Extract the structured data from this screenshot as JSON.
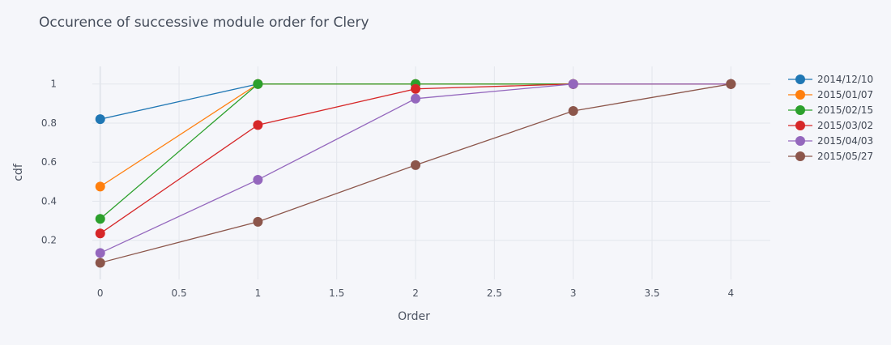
{
  "chart_data": {
    "type": "line",
    "title": "Occurence of successive module order for Clery",
    "xlabel": "Order",
    "ylabel": "cdf",
    "xlim": [
      -0.05,
      4.25
    ],
    "ylim": [
      0.0,
      1.09
    ],
    "x_ticks": [
      0,
      0.5,
      1,
      1.5,
      2,
      2.5,
      3,
      3.5,
      4
    ],
    "x_tick_labels": [
      "0",
      "0.5",
      "1",
      "1.5",
      "2",
      "2.5",
      "3",
      "3.5",
      "4"
    ],
    "y_ticks": [
      0.2,
      0.4,
      0.6,
      0.8,
      1
    ],
    "y_tick_labels": [
      "0.2",
      "0.4",
      "0.6",
      "0.8",
      "1"
    ],
    "grid": true,
    "legend_position": "top-right",
    "x": [
      0,
      1,
      2,
      3,
      4
    ],
    "series": [
      {
        "name": "2014/12/10",
        "color": "#1f77b4",
        "values": [
          0.82,
          1.0,
          1.0,
          1.0,
          1.0
        ]
      },
      {
        "name": "2015/01/07",
        "color": "#ff7f0e",
        "values": [
          0.475,
          1.0,
          1.0,
          1.0,
          1.0
        ]
      },
      {
        "name": "2015/02/15",
        "color": "#2ca02c",
        "values": [
          0.31,
          1.0,
          1.0,
          1.0,
          1.0
        ]
      },
      {
        "name": "2015/03/02",
        "color": "#d62728",
        "values": [
          0.235,
          0.79,
          0.975,
          1.0,
          1.0
        ]
      },
      {
        "name": "2015/04/03",
        "color": "#9467bd",
        "values": [
          0.135,
          0.51,
          0.925,
          1.0,
          1.0
        ]
      },
      {
        "name": "2015/05/27",
        "color": "#8c564b",
        "values": [
          0.085,
          0.295,
          0.585,
          0.862,
          1.0
        ]
      }
    ]
  }
}
